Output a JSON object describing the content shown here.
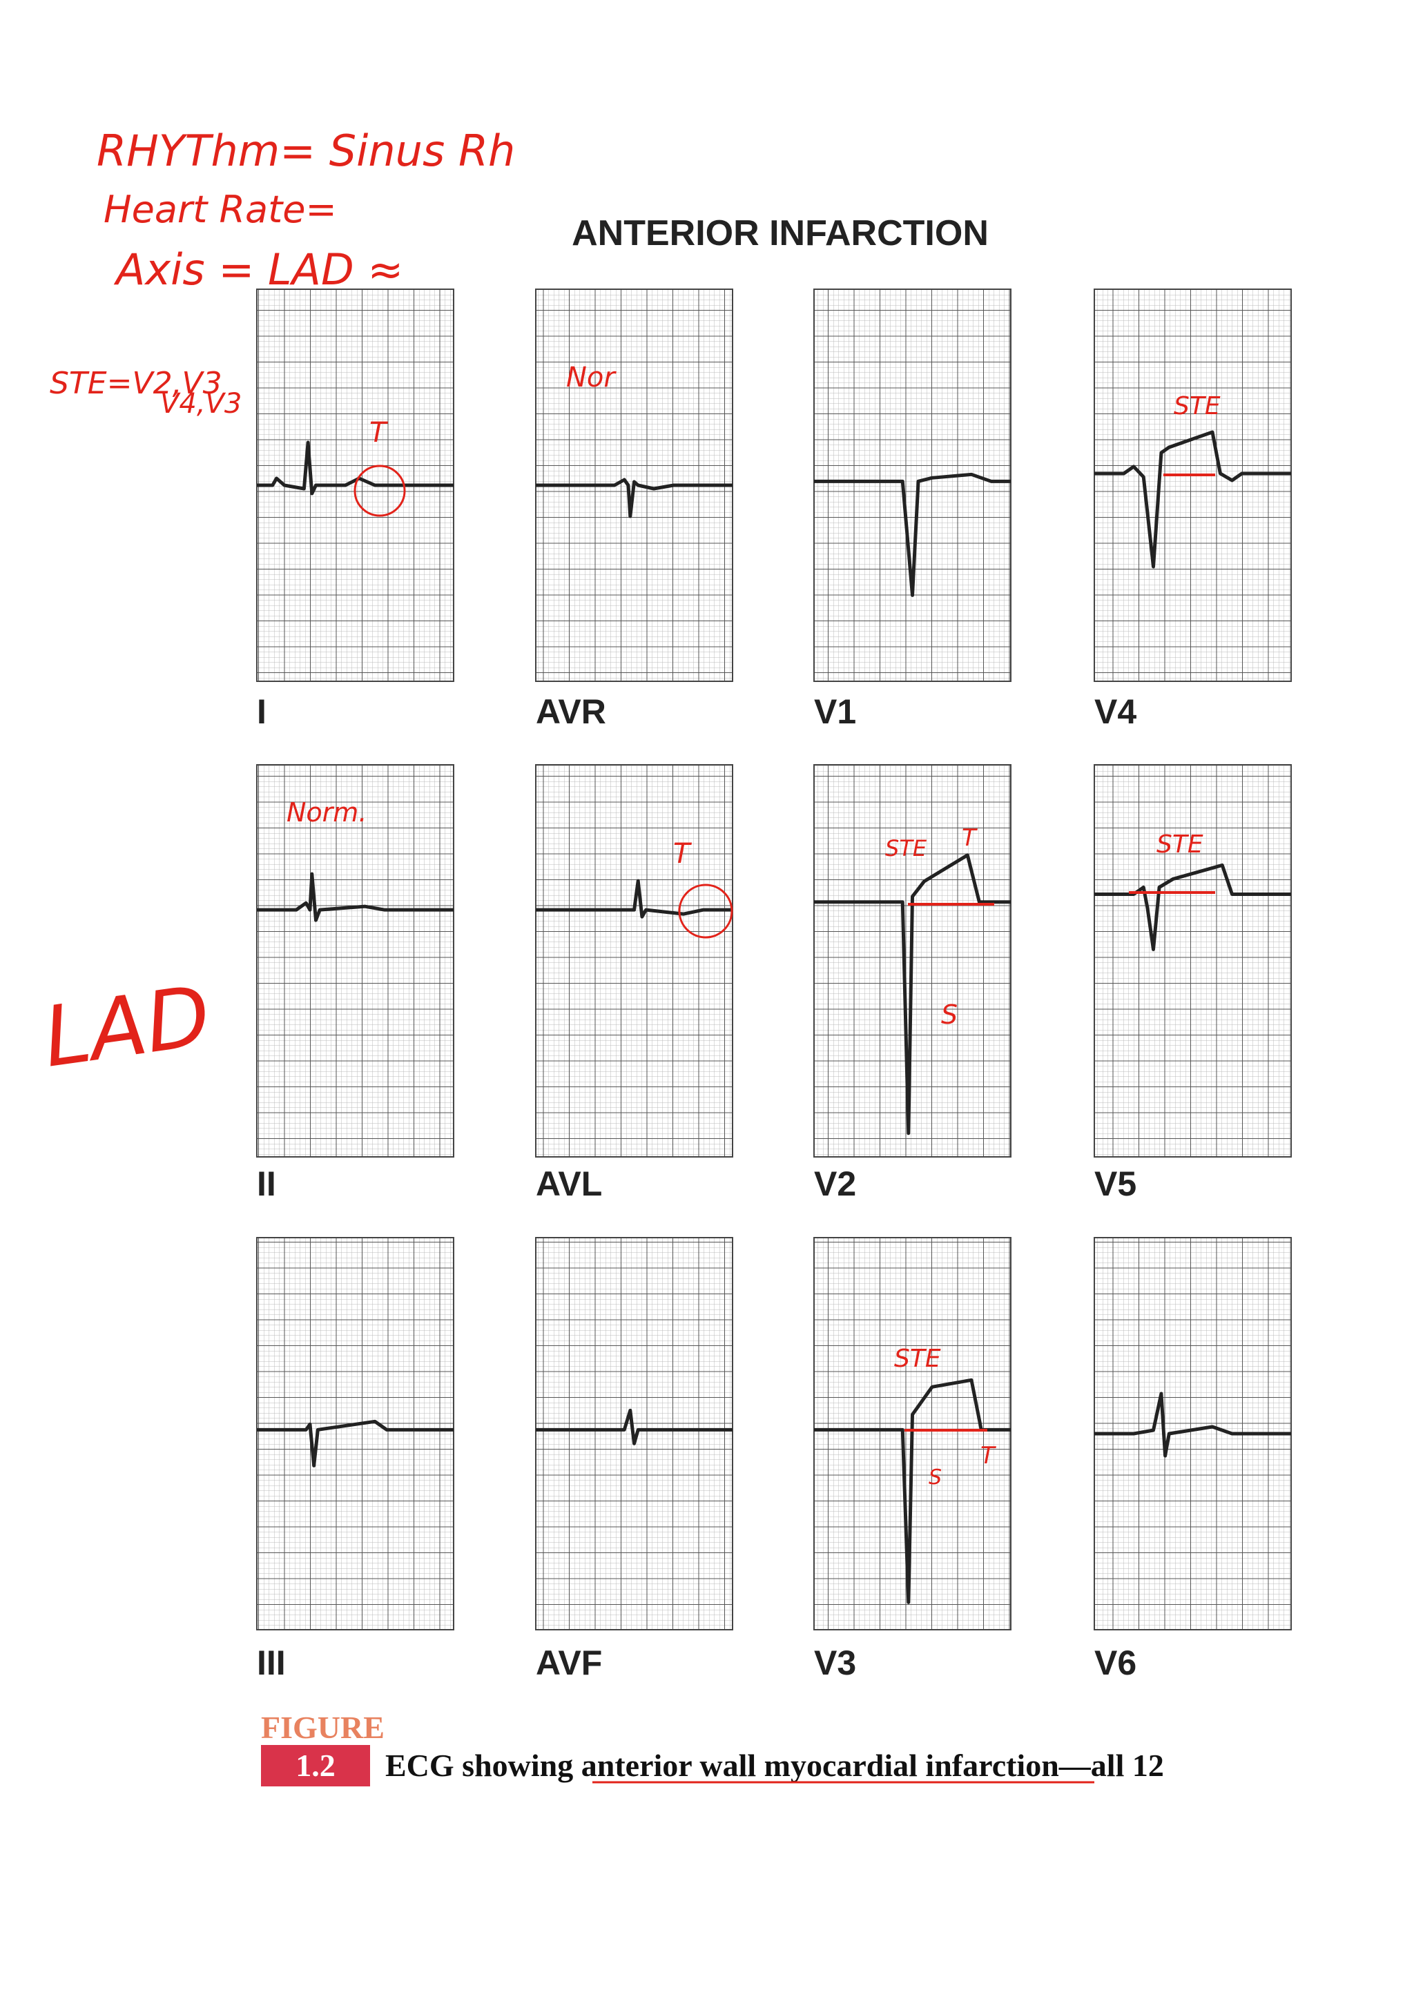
{
  "notes": {
    "rhythm": "RHYThm= Sinus Rh",
    "rate": "Heart Rate=",
    "axis": "Axis = LAD ≈",
    "ste1": "STE=V2,V3",
    "ste2": "V4,V3",
    "lad": "LAD"
  },
  "header": {
    "title": "ANTERIOR INFARCTION"
  },
  "leads": [
    "I",
    "AVR",
    "V1",
    "V4",
    "II",
    "AVL",
    "V2",
    "V5",
    "III",
    "AVF",
    "V3",
    "V6"
  ],
  "panel_notes": {
    "i_t": "T",
    "avr_nor": "Nor",
    "ii_norm": "Norm.",
    "avl_t": "T",
    "v4_ste": "STE",
    "v2_ste": "STE",
    "v2_t": "T",
    "v2_s": "S",
    "v5_ste": "STE",
    "v3_ste": "STE",
    "v3_t": "T",
    "v3_s": "S"
  },
  "figure": {
    "label": "FIGURE",
    "number": "1.2",
    "caption_start": "ECG showing ",
    "caption_link": "anterior wall myocardial infarction",
    "caption_end": "—all 12"
  }
}
